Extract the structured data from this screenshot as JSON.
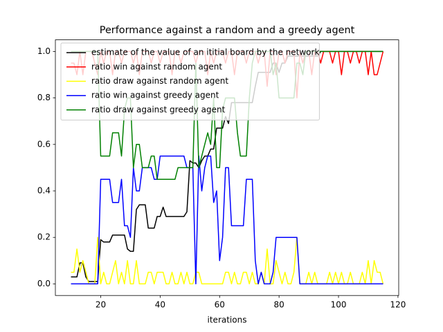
{
  "chart_data": {
    "type": "line",
    "title": "Performance against a random and a greedy agent",
    "xlabel": "iterations",
    "x": [
      10,
      11,
      12,
      13,
      14,
      15,
      16,
      17,
      18,
      19,
      20,
      21,
      22,
      23,
      24,
      25,
      26,
      27,
      28,
      29,
      30,
      31,
      32,
      33,
      34,
      35,
      36,
      37,
      38,
      39,
      40,
      41,
      42,
      43,
      44,
      45,
      46,
      47,
      48,
      49,
      50,
      51,
      52,
      53,
      54,
      55,
      56,
      57,
      58,
      59,
      60,
      61,
      62,
      63,
      64,
      65,
      66,
      67,
      68,
      69,
      70,
      71,
      72,
      73,
      74,
      75,
      76,
      77,
      78,
      79,
      80,
      81,
      82,
      83,
      84,
      85,
      86,
      87,
      88,
      89,
      90,
      91,
      92,
      93,
      94,
      95,
      96,
      97,
      98,
      99,
      100,
      101,
      102,
      103,
      104,
      105,
      106,
      107,
      108,
      109,
      110,
      111,
      112,
      113,
      114,
      115
    ],
    "series": [
      {
        "name": "estimate of the value of an ititial board by the network",
        "color": "#000000",
        "values": [
          0.03,
          0.03,
          0.03,
          0.09,
          0.09,
          0.03,
          0.01,
          0.01,
          0.01,
          0.01,
          0.19,
          0.18,
          0.18,
          0.18,
          0.21,
          0.21,
          0.21,
          0.21,
          0.21,
          0.15,
          0.14,
          0.14,
          0.32,
          0.34,
          0.34,
          0.34,
          0.24,
          0.24,
          0.24,
          0.29,
          0.29,
          0.33,
          0.29,
          0.29,
          0.29,
          0.29,
          0.29,
          0.29,
          0.29,
          0.31,
          0.53,
          0.52,
          0.52,
          0.5,
          0.53,
          0.55,
          0.55,
          0.58,
          0.58,
          0.67,
          0.67,
          0.67,
          0.72,
          0.69,
          0.78,
          0.78,
          0.78,
          0.78,
          0.78,
          0.78,
          0.78,
          0.78,
          0.85,
          0.91,
          0.91,
          0.91,
          0.91,
          0.91,
          0.95,
          0.95,
          0.91,
          0.95,
          0.95,
          0.98,
          0.98,
          0.98,
          0.98,
          0.98,
          0.98,
          0.98,
          0.98,
          0.98,
          0.98,
          0.98,
          1,
          1,
          1,
          1,
          1,
          1,
          1,
          1,
          1,
          1,
          1,
          1,
          1,
          1,
          1,
          1,
          1,
          1,
          1,
          1,
          1,
          1
        ]
      },
      {
        "name": "ratio win against random agent",
        "color": "#ff0000",
        "values": [
          0.95,
          0.95,
          0.9,
          1,
          0.9,
          1,
          1,
          1,
          0.95,
          0.9,
          1,
          0.95,
          1,
          1,
          0.9,
          1,
          1,
          0.95,
          1,
          1,
          1,
          0.95,
          1,
          0.9,
          1,
          1,
          1,
          0.95,
          1,
          1,
          0.95,
          1,
          1,
          1,
          0.9,
          1,
          1,
          0.95,
          1,
          1,
          1,
          1,
          0.95,
          1,
          1,
          1,
          0.9,
          1,
          0.95,
          1,
          1,
          1,
          0.95,
          1,
          1,
          0.9,
          1,
          1,
          1,
          0.95,
          1,
          1,
          1,
          0.95,
          1,
          1,
          0.85,
          1,
          1,
          0.9,
          1,
          1,
          0.95,
          1,
          1,
          1,
          0.8,
          1,
          0.95,
          1,
          1,
          0.9,
          1,
          1,
          0.95,
          1,
          1,
          1,
          0.95,
          1,
          1,
          0.9,
          1,
          1,
          0.95,
          1,
          1,
          0.95,
          1,
          1,
          0.9,
          1,
          0.9,
          0.9,
          0.95,
          1
        ]
      },
      {
        "name": "ratio draw against random agent",
        "color": "#ffff00",
        "values": [
          0.05,
          0.05,
          0.15,
          0.05,
          0.1,
          0.05,
          0,
          0,
          0,
          0.2,
          0,
          0.05,
          0,
          0,
          0.05,
          0.1,
          0,
          0.05,
          0,
          0.1,
          0,
          0,
          0.1,
          0,
          0,
          0,
          0.05,
          0.05,
          0,
          0.05,
          0.05,
          0.05,
          0,
          0,
          0.05,
          0,
          0,
          0.05,
          0,
          0.05,
          0,
          0,
          0.05,
          0.05,
          0,
          0,
          0,
          0,
          0,
          0,
          0,
          0,
          0.05,
          0.05,
          0,
          0.05,
          0,
          0,
          0.05,
          0.05,
          0,
          0.05,
          0,
          0,
          0.05,
          0,
          0.15,
          0,
          0,
          0.1,
          0.05,
          0,
          0.05,
          0,
          0,
          0.05,
          0.2,
          0,
          0,
          0,
          0.05,
          0,
          0.05,
          0,
          0,
          0,
          0,
          0.05,
          0,
          0.05,
          0,
          0.05,
          0,
          0,
          0.05,
          0,
          0,
          0,
          0.05,
          0,
          0.1,
          0,
          0.1,
          0.05,
          0.05,
          0
        ]
      },
      {
        "name": "ratio win against greedy agent",
        "color": "#0000ff",
        "values": [
          0,
          0,
          0,
          0,
          0,
          0,
          0,
          0,
          0,
          0,
          0.45,
          0.45,
          0.45,
          0.45,
          0.35,
          0.35,
          0.35,
          0.45,
          0.25,
          0.25,
          0.2,
          0.5,
          0.4,
          0.4,
          0.5,
          0.5,
          0.5,
          0.5,
          0.45,
          0.45,
          0.55,
          0.55,
          0.55,
          0.55,
          0.55,
          0.55,
          0.55,
          0.55,
          0.55,
          0.5,
          0.5,
          0.5,
          0,
          0.55,
          0.4,
          0.5,
          0.55,
          0.55,
          0.35,
          0.4,
          0.1,
          0.2,
          0.5,
          0.5,
          0.25,
          0.25,
          0.25,
          0.25,
          0.25,
          0.45,
          0.45,
          0.45,
          0.1,
          0,
          0.05,
          0,
          0,
          0,
          0.05,
          0.2,
          0.2,
          0.2,
          0.2,
          0.2,
          0.2,
          0.2,
          0.2,
          0,
          0,
          0,
          0,
          0,
          0,
          0,
          0,
          0,
          0,
          0,
          0,
          0,
          0,
          0,
          0,
          0,
          0,
          0,
          0,
          0,
          0,
          0,
          0,
          0,
          0,
          0,
          0,
          0
        ]
      },
      {
        "name": "ratio draw against greedy agent",
        "color": "#008000",
        "values": [
          1,
          1,
          1,
          1,
          1,
          1,
          1,
          1,
          1,
          1,
          0.55,
          0.55,
          0.55,
          0.55,
          0.65,
          0.65,
          0.65,
          0.55,
          0.75,
          0.8,
          0.8,
          0.5,
          0.6,
          0.6,
          0.5,
          0.5,
          0.5,
          0.55,
          0.55,
          0.45,
          0.45,
          0.45,
          0.45,
          0.45,
          0.45,
          0.45,
          0.5,
          0.5,
          0.5,
          0.5,
          0.5,
          0.5,
          0.95,
          0.5,
          0.55,
          0.6,
          0.65,
          0.6,
          0.8,
          0.5,
          0.5,
          0.75,
          0.8,
          0.8,
          0.8,
          0.8,
          0.65,
          0.55,
          0.55,
          0.55,
          0.8,
          0.95,
          1,
          1,
          1,
          1,
          1,
          1,
          0.9,
          0.95,
          0.8,
          0.8,
          0.8,
          0.8,
          0.8,
          0.8,
          0.95,
          0.95,
          0.9,
          1,
          1,
          1,
          1,
          1,
          1,
          1,
          1,
          1,
          1,
          1,
          1,
          1,
          1,
          1,
          1,
          1,
          1,
          1,
          1,
          1,
          1,
          1,
          1,
          1,
          1,
          1
        ]
      }
    ],
    "xlim": [
      4.75,
      120.25
    ],
    "xticks": [
      20,
      40,
      60,
      80,
      100,
      120
    ],
    "ylim": [
      -0.05,
      1.05
    ],
    "yticks": [
      {
        "value": 0,
        "label": "0.0"
      },
      {
        "value": 0.2,
        "label": "0.2"
      },
      {
        "value": 0.4,
        "label": "0.4"
      },
      {
        "value": 0.6,
        "label": "0.6"
      },
      {
        "value": 0.8,
        "label": "0.8"
      },
      {
        "value": 1,
        "label": "1.0"
      }
    ],
    "legend": "upper left",
    "grid": false
  }
}
